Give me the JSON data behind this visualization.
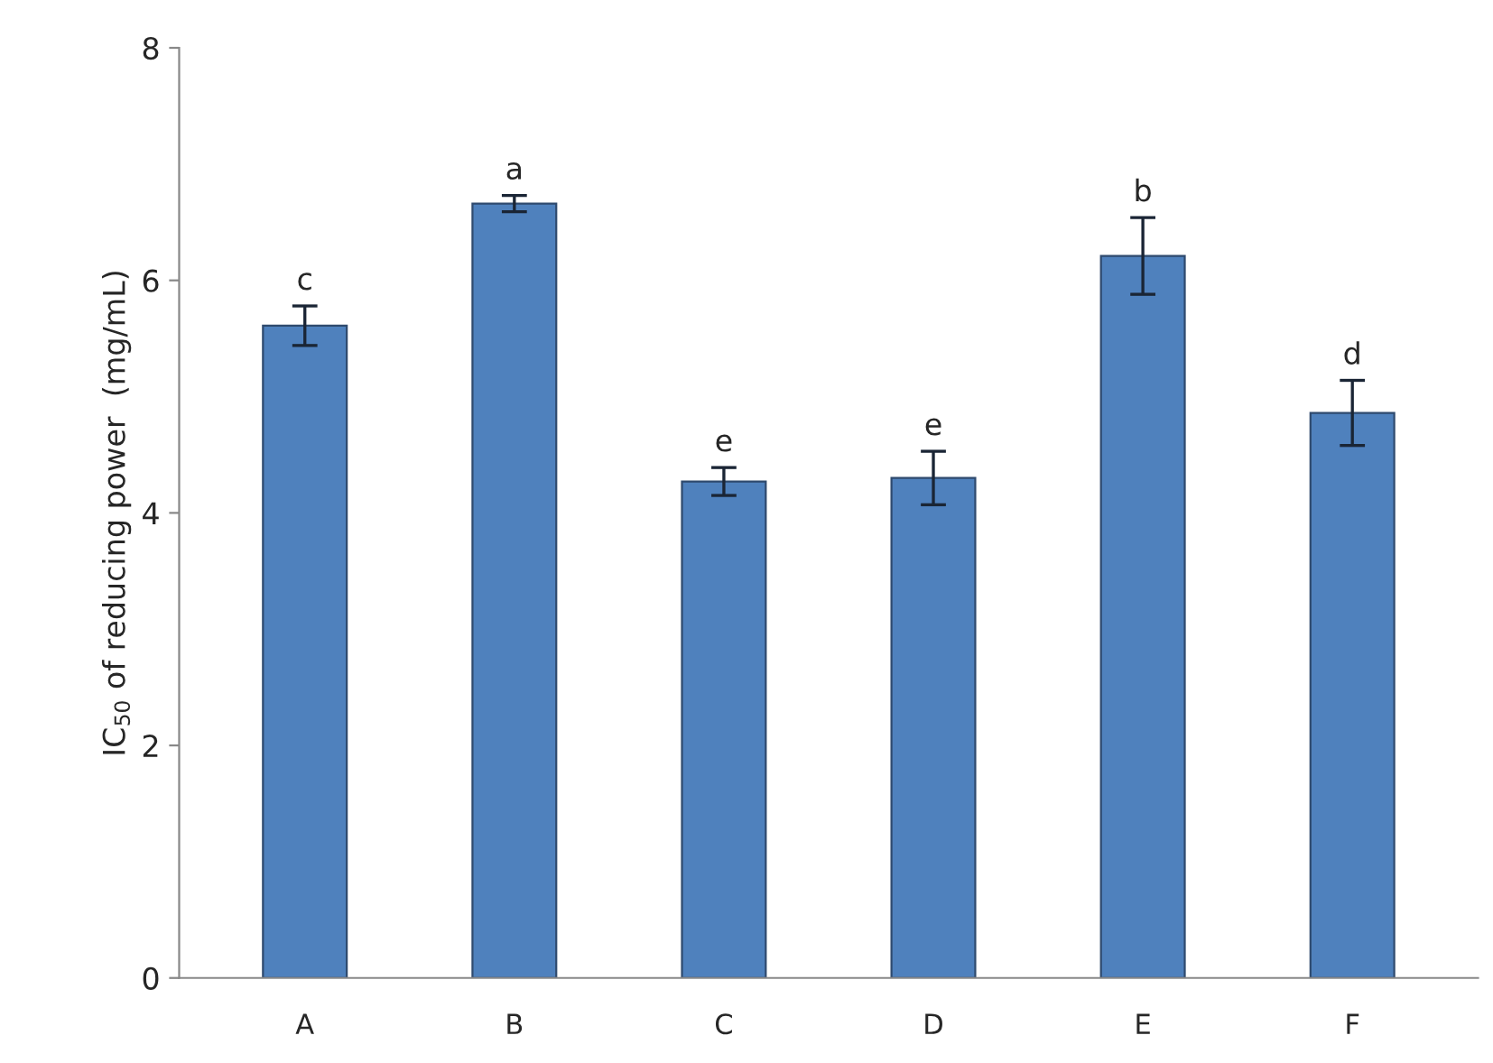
{
  "chart_data": {
    "type": "bar",
    "ylabel": "IC$_{50}$ of reducing power  (mg/mL)",
    "categories": [
      "A",
      "B",
      "C",
      "D",
      "E",
      "F"
    ],
    "values": [
      5.61,
      6.66,
      4.27,
      4.3,
      6.21,
      4.86
    ],
    "errors": [
      0.17,
      0.07,
      0.12,
      0.23,
      0.33,
      0.28
    ],
    "color": "#4f81bd",
    "ylim": [
      0,
      8
    ],
    "yticks": [
      0,
      2,
      4,
      6,
      8
    ],
    "grid": false,
    "legend": false,
    "annotations": [
      {
        "text": "c",
        "x": "A",
        "y": 5.78
      },
      {
        "text": "a",
        "x": "B",
        "y": 6.73
      },
      {
        "text": "e",
        "x": "C",
        "y": 4.39
      },
      {
        "text": "e",
        "x": "D",
        "y": 4.53
      },
      {
        "text": "b",
        "x": "E",
        "y": 6.54
      },
      {
        "text": "d",
        "x": "F",
        "y": 5.14
      }
    ]
  }
}
